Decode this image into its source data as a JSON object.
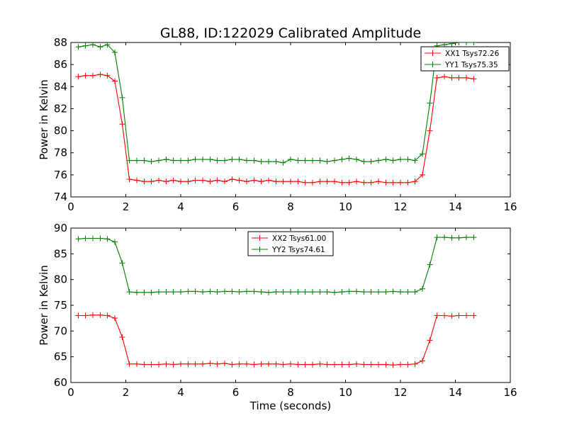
{
  "chart_data": [
    {
      "type": "line",
      "title": "GL88, ID:122029 Calibrated Amplitude",
      "xlabel": "",
      "ylabel": "Power in Kelvin",
      "xlim": [
        0,
        16
      ],
      "ylim": [
        74,
        88
      ],
      "xticks": [
        "0",
        "2",
        "4",
        "6",
        "8",
        "10",
        "12",
        "14",
        "16"
      ],
      "yticks": [
        "74",
        "76",
        "78",
        "80",
        "82",
        "84",
        "86",
        "88"
      ],
      "grid": false,
      "legend_position": "top-right",
      "x": [
        0.27,
        0.53,
        0.8,
        1.07,
        1.33,
        1.6,
        1.87,
        2.13,
        2.4,
        2.67,
        2.93,
        3.2,
        3.47,
        3.73,
        4.0,
        4.27,
        4.53,
        4.8,
        5.07,
        5.33,
        5.6,
        5.87,
        6.13,
        6.4,
        6.67,
        6.93,
        7.2,
        7.47,
        7.73,
        8.0,
        8.27,
        8.53,
        8.8,
        9.07,
        9.33,
        9.6,
        9.87,
        10.13,
        10.4,
        10.67,
        10.93,
        11.2,
        11.47,
        11.73,
        12.0,
        12.27,
        12.53,
        12.8,
        13.07,
        13.33,
        13.6,
        13.87,
        14.13,
        14.4,
        14.67
      ],
      "series": [
        {
          "name": "XX1 Tsys72.26",
          "color": "#ff0000",
          "values": [
            84.9,
            85.0,
            85.0,
            85.1,
            85.0,
            84.5,
            80.6,
            75.6,
            75.5,
            75.4,
            75.4,
            75.5,
            75.4,
            75.5,
            75.4,
            75.4,
            75.5,
            75.5,
            75.4,
            75.5,
            75.4,
            75.6,
            75.5,
            75.4,
            75.5,
            75.4,
            75.5,
            75.4,
            75.4,
            75.4,
            75.4,
            75.3,
            75.3,
            75.4,
            75.4,
            75.4,
            75.3,
            75.3,
            75.4,
            75.3,
            75.3,
            75.4,
            75.3,
            75.3,
            75.3,
            75.3,
            75.4,
            76.0,
            80.0,
            84.8,
            84.9,
            84.8,
            84.8,
            84.8,
            84.7
          ]
        },
        {
          "name": "YY1 Tsys75.35",
          "color": "#008000",
          "values": [
            87.6,
            87.7,
            87.8,
            87.6,
            87.8,
            87.1,
            83.0,
            77.3,
            77.3,
            77.3,
            77.2,
            77.3,
            77.4,
            77.3,
            77.3,
            77.3,
            77.4,
            77.4,
            77.4,
            77.3,
            77.3,
            77.4,
            77.4,
            77.3,
            77.3,
            77.2,
            77.2,
            77.2,
            77.1,
            77.4,
            77.3,
            77.3,
            77.3,
            77.3,
            77.2,
            77.3,
            77.4,
            77.5,
            77.4,
            77.2,
            77.2,
            77.3,
            77.4,
            77.3,
            77.4,
            77.4,
            77.3,
            77.9,
            82.5,
            87.7,
            87.8,
            87.9,
            88.0,
            88.0,
            88.0
          ]
        }
      ]
    },
    {
      "type": "line",
      "title": "",
      "xlabel": "Time (seconds)",
      "ylabel": "Power in Kelvin",
      "xlim": [
        0,
        16
      ],
      "ylim": [
        60,
        90
      ],
      "xticks": [
        "0",
        "2",
        "4",
        "6",
        "8",
        "10",
        "12",
        "14",
        "16"
      ],
      "yticks": [
        "60",
        "65",
        "70",
        "75",
        "80",
        "85",
        "90"
      ],
      "grid": false,
      "legend_position": "top-center",
      "x": [
        0.27,
        0.53,
        0.8,
        1.07,
        1.33,
        1.6,
        1.87,
        2.13,
        2.4,
        2.67,
        2.93,
        3.2,
        3.47,
        3.73,
        4.0,
        4.27,
        4.53,
        4.8,
        5.07,
        5.33,
        5.6,
        5.87,
        6.13,
        6.4,
        6.67,
        6.93,
        7.2,
        7.47,
        7.73,
        8.0,
        8.27,
        8.53,
        8.8,
        9.07,
        9.33,
        9.6,
        9.87,
        10.13,
        10.4,
        10.67,
        10.93,
        11.2,
        11.47,
        11.73,
        12.0,
        12.27,
        12.53,
        12.8,
        13.07,
        13.33,
        13.6,
        13.87,
        14.13,
        14.4,
        14.67
      ],
      "series": [
        {
          "name": "XX2 Tsys61.00",
          "color": "#ff0000",
          "values": [
            73.0,
            73.0,
            73.1,
            73.1,
            73.0,
            72.5,
            68.8,
            63.6,
            63.6,
            63.5,
            63.5,
            63.5,
            63.6,
            63.5,
            63.6,
            63.6,
            63.6,
            63.6,
            63.7,
            63.6,
            63.7,
            63.5,
            63.6,
            63.6,
            63.5,
            63.6,
            63.6,
            63.6,
            63.5,
            63.6,
            63.5,
            63.5,
            63.5,
            63.6,
            63.5,
            63.5,
            63.5,
            63.5,
            63.6,
            63.5,
            63.5,
            63.5,
            63.5,
            63.4,
            63.5,
            63.5,
            63.6,
            64.2,
            68.2,
            73.0,
            73.0,
            72.9,
            73.0,
            73.0,
            73.0
          ]
        },
        {
          "name": "YY2 Tsys74.61",
          "color": "#008000",
          "values": [
            87.9,
            88.0,
            88.0,
            88.0,
            87.9,
            87.3,
            83.2,
            77.6,
            77.5,
            77.5,
            77.5,
            77.6,
            77.6,
            77.6,
            77.6,
            77.7,
            77.7,
            77.6,
            77.7,
            77.6,
            77.7,
            77.7,
            77.6,
            77.7,
            77.7,
            77.6,
            77.5,
            77.6,
            77.6,
            77.6,
            77.6,
            77.6,
            77.6,
            77.6,
            77.6,
            77.5,
            77.6,
            77.7,
            77.7,
            77.6,
            77.6,
            77.6,
            77.6,
            77.7,
            77.6,
            77.6,
            77.6,
            78.2,
            82.9,
            88.2,
            88.2,
            88.1,
            88.1,
            88.2,
            88.2
          ]
        }
      ]
    }
  ]
}
